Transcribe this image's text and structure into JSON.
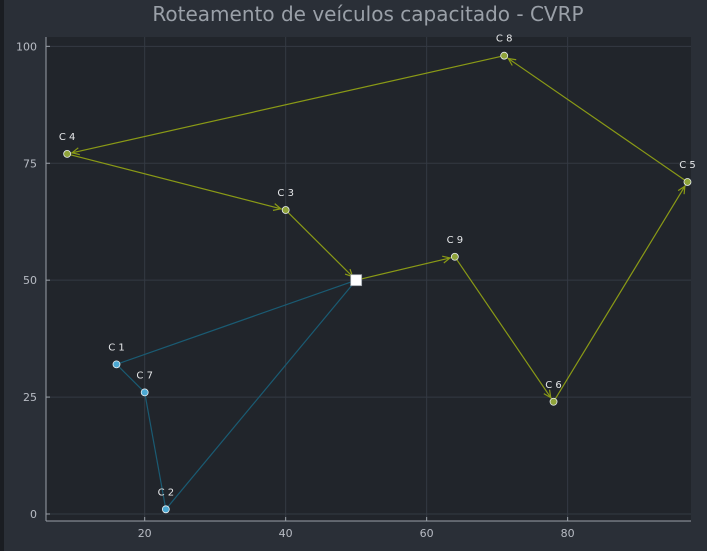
{
  "chart_data": {
    "type": "line",
    "title": "Roteamento de veículos capacitado - CVRP",
    "xlabel": "",
    "ylabel": "",
    "xlim": [
      6,
      97.5
    ],
    "ylim": [
      -1.5,
      102
    ],
    "x_ticks": [
      20,
      40,
      60,
      80
    ],
    "y_ticks": [
      0,
      25,
      50,
      75,
      100
    ],
    "grid": true,
    "depot": {
      "x": 50,
      "y": 50
    },
    "points": [
      {
        "label": "C 1",
        "x": 16,
        "y": 32
      },
      {
        "label": "C 2",
        "x": 23,
        "y": 1
      },
      {
        "label": "C 3",
        "x": 40,
        "y": 65
      },
      {
        "label": "C 4",
        "x": 9,
        "y": 77
      },
      {
        "label": "C 5",
        "x": 97,
        "y": 71
      },
      {
        "label": "C 6",
        "x": 78,
        "y": 24
      },
      {
        "label": "C 7",
        "x": 20,
        "y": 26
      },
      {
        "label": "C 8",
        "x": 71,
        "y": 98
      },
      {
        "label": "C 9",
        "x": 64,
        "y": 55
      }
    ],
    "series": [
      {
        "color": "#8a9a16",
        "marker_fill": "#8fa33a",
        "arrows": true,
        "route": [
          "depot",
          "C 9",
          "C 6",
          "C 5",
          "C 8",
          "C 4",
          "C 3",
          "depot"
        ]
      },
      {
        "color": "#1a5b73",
        "marker_fill": "#4ba8d2",
        "arrows": false,
        "route": [
          "depot",
          "C 1",
          "C 7",
          "C 2",
          "depot"
        ]
      }
    ],
    "colors": {
      "background": "#2a2f37",
      "plot_background": "#21252b",
      "grid": "#343a43",
      "axis": "#9aa0a8",
      "depot": "#ffffff"
    }
  }
}
